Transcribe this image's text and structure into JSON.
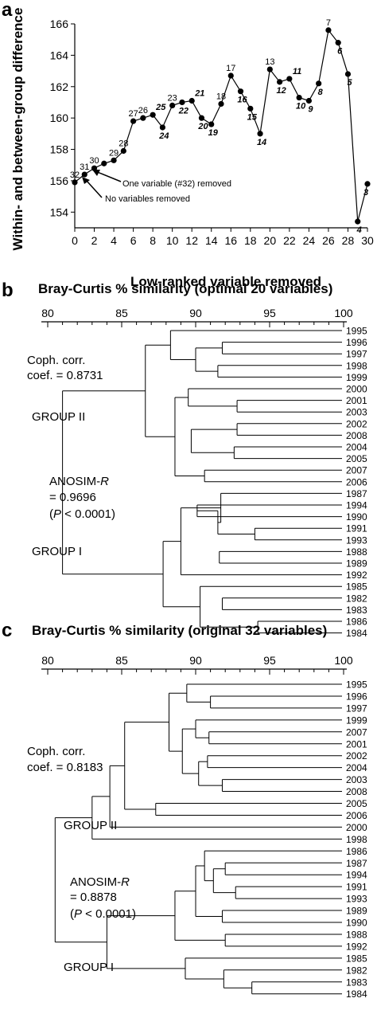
{
  "panels": {
    "a": "a",
    "b": "b",
    "c": "c"
  },
  "chart_data": [
    {
      "type": "line",
      "ylabel": "Within- and between-group difference",
      "xlabel": "Low-ranked variable removed",
      "xlim": [
        0,
        30
      ],
      "ylim": [
        153,
        166
      ],
      "xticks": [
        0,
        2,
        4,
        6,
        8,
        10,
        12,
        14,
        16,
        18,
        20,
        22,
        24,
        26,
        28,
        30
      ],
      "yticks": [
        154,
        156,
        158,
        160,
        162,
        164,
        166
      ],
      "points": [
        {
          "x": 0,
          "y": 155.9,
          "label": "32",
          "italic": false
        },
        {
          "x": 1,
          "y": 156.4,
          "label": "31",
          "italic": false
        },
        {
          "x": 2,
          "y": 156.8,
          "label": "30",
          "italic": false
        },
        {
          "x": 3,
          "y": 157.1,
          "label": "",
          "italic": false
        },
        {
          "x": 4,
          "y": 157.3,
          "label": "29",
          "italic": false
        },
        {
          "x": 5,
          "y": 157.9,
          "label": "28",
          "italic": false
        },
        {
          "x": 6,
          "y": 159.8,
          "label": "27",
          "italic": false
        },
        {
          "x": 7,
          "y": 160.0,
          "label": "26",
          "italic": false
        },
        {
          "x": 8,
          "y": 160.2,
          "label": "25",
          "italic": true
        },
        {
          "x": 9,
          "y": 159.4,
          "label": "24",
          "italic": true
        },
        {
          "x": 10,
          "y": 160.8,
          "label": "23",
          "italic": false
        },
        {
          "x": 11,
          "y": 161.0,
          "label": "22",
          "italic": true
        },
        {
          "x": 12,
          "y": 161.1,
          "label": "21",
          "italic": true
        },
        {
          "x": 13,
          "y": 160.0,
          "label": "20",
          "italic": true
        },
        {
          "x": 14,
          "y": 159.6,
          "label": "19",
          "italic": true
        },
        {
          "x": 15,
          "y": 160.9,
          "label": "18",
          "italic": false
        },
        {
          "x": 16,
          "y": 162.7,
          "label": "17",
          "italic": false
        },
        {
          "x": 17,
          "y": 161.7,
          "label": "16",
          "italic": true
        },
        {
          "x": 18,
          "y": 160.6,
          "label": "15",
          "italic": true
        },
        {
          "x": 19,
          "y": 159.0,
          "label": "14",
          "italic": true
        },
        {
          "x": 20,
          "y": 163.1,
          "label": "13",
          "italic": false
        },
        {
          "x": 21,
          "y": 162.3,
          "label": "12",
          "italic": true
        },
        {
          "x": 22,
          "y": 162.5,
          "label": "11",
          "italic": true
        },
        {
          "x": 23,
          "y": 161.3,
          "label": "10",
          "italic": true
        },
        {
          "x": 24,
          "y": 161.1,
          "label": "9",
          "italic": true
        },
        {
          "x": 25,
          "y": 162.2,
          "label": "8",
          "italic": true
        },
        {
          "x": 26,
          "y": 165.6,
          "label": "7",
          "italic": false
        },
        {
          "x": 27,
          "y": 164.8,
          "label": "6",
          "italic": true
        },
        {
          "x": 28,
          "y": 162.8,
          "label": "5",
          "italic": true
        },
        {
          "x": 29,
          "y": 153.4,
          "label": "4",
          "italic": true
        },
        {
          "x": 30,
          "y": 155.8,
          "label": "3",
          "italic": true
        }
      ],
      "annotations": [
        "One variable (#32) removed",
        "No variables removed"
      ]
    },
    {
      "type": "dendrogram",
      "title": "Bray-Curtis % similarity (optimal 20 variables)",
      "xlim": [
        80,
        100
      ],
      "xticks": [
        80,
        85,
        90,
        95,
        100
      ],
      "leaves": [
        "1995",
        "1996",
        "1997",
        "1998",
        "1999",
        "2000",
        "2001",
        "2003",
        "2002",
        "2008",
        "2004",
        "2005",
        "2007",
        "2006",
        "1987",
        "1994",
        "1990",
        "1991",
        "1993",
        "1988",
        "1989",
        "1992",
        "1985",
        "1982",
        "1983",
        "1986",
        "1984"
      ],
      "merges": [
        [
          1,
          2,
          91.8
        ],
        [
          3,
          4,
          91.5
        ],
        [
          15,
          16,
          90.1
        ],
        [
          17,
          18,
          94.0
        ],
        [
          25,
          26,
          94.2
        ],
        [
          8,
          9,
          92.8
        ],
        [
          10,
          "5",
          92.6
        ],
        [
          6,
          7,
          92.8
        ],
        [
          12,
          13,
          90.6
        ],
        [
          23,
          24,
          91.8
        ],
        [
          1,
          4,
          90.0
        ],
        [
          0,
          1,
          88.3
        ],
        [
          8,
          "4",
          89.7
        ],
        [
          5,
          6,
          89.5
        ],
        [
          16,
          "3",
          91.5
        ],
        [
          14,
          "2",
          91.7
        ],
        [
          19,
          20,
          91.6
        ],
        [
          22,
          26,
          90.3
        ],
        [
          14,
          21,
          89.0
        ],
        [
          5,
          13,
          88.6
        ],
        [
          0,
          13,
          86.6
        ],
        [
          14,
          "6",
          87.8
        ],
        [
          14,
          26,
          86.1
        ],
        [
          0,
          26,
          81.0
        ]
      ],
      "notes": {
        "coph": [
          "Coph. corr.",
          "coef. = 0.8731"
        ],
        "group2": "GROUP II",
        "group1": "GROUP I",
        "anosim": [
          "ANOSIM-R",
          "= 0.9696",
          "(P < 0.0001)"
        ]
      }
    },
    {
      "type": "dendrogram",
      "title": "Bray-Curtis % similarity (original 32 variables)",
      "xlim": [
        80,
        100
      ],
      "xticks": [
        80,
        85,
        90,
        95,
        100
      ],
      "leaves": [
        "1995",
        "1996",
        "1997",
        "1999",
        "2007",
        "2001",
        "2002",
        "2004",
        "2003",
        "2008",
        "2005",
        "2006",
        "2000",
        "1998",
        "1986",
        "1987",
        "1994",
        "1991",
        "1993",
        "1989",
        "1990",
        "1988",
        "1992",
        "1985",
        "1982",
        "1983",
        "1984"
      ],
      "merges": [
        [
          1,
          2,
          91.0
        ],
        [
          4,
          5,
          90.9
        ],
        [
          6,
          7,
          90.8
        ],
        [
          8,
          9,
          91.8
        ],
        [
          15,
          16,
          92.0
        ],
        [
          17,
          18,
          92.7
        ],
        [
          19,
          20,
          91.8
        ],
        [
          21,
          22,
          92.0
        ],
        [
          25,
          26,
          93.8
        ],
        [
          0,
          2,
          89.4
        ],
        [
          3,
          5,
          90.0
        ],
        [
          6,
          9,
          90.2
        ],
        [
          15,
          18,
          91.2
        ],
        [
          10,
          11,
          87.3
        ],
        [
          24,
          26,
          91.9
        ],
        [
          3,
          9,
          89.1
        ],
        [
          0,
          9,
          88.2
        ],
        [
          14,
          18,
          90.6
        ],
        [
          23,
          26,
          89.3
        ],
        [
          14,
          20,
          90.0
        ],
        [
          0,
          11,
          85.2
        ],
        [
          0,
          12,
          84.2
        ],
        [
          14,
          22,
          88.6
        ],
        [
          0,
          13,
          83.0
        ],
        [
          14,
          26,
          84.0
        ],
        [
          0,
          26,
          80.5
        ]
      ],
      "notes": {
        "coph": [
          "Coph. corr.",
          "coef. = 0.8183"
        ],
        "group2": "GROUP II",
        "group1": "GROUP I",
        "anosim": [
          "ANOSIM-R",
          "= 0.8878",
          "(P < 0.0001)"
        ]
      }
    }
  ]
}
